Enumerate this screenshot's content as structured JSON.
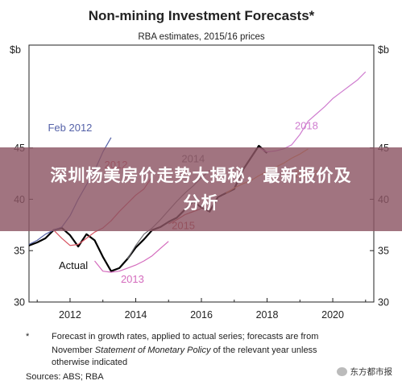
{
  "chart_data": {
    "type": "line",
    "title": "Non-mining Investment Forecasts*",
    "subtitle": "RBA estimates, 2015/16 prices",
    "y_unit_left": "$b",
    "y_unit_right": "$b",
    "xlim": [
      2010.75,
      2021.25
    ],
    "ylim": [
      30,
      55
    ],
    "x_ticks": [
      "2012",
      "2014",
      "2016",
      "2018",
      "2020"
    ],
    "y_ticks": [
      "30",
      "35",
      "40",
      "45"
    ],
    "grid": false,
    "series": [
      {
        "name": "Actual",
        "color": "#000000",
        "label_pos": [
          2012.1,
          33.2
        ],
        "points": [
          [
            2010.75,
            35.5
          ],
          [
            2011.0,
            35.8
          ],
          [
            2011.25,
            36.2
          ],
          [
            2011.5,
            37.0
          ],
          [
            2011.75,
            37.2
          ],
          [
            2012.0,
            36.5
          ],
          [
            2012.25,
            35.4
          ],
          [
            2012.5,
            36.6
          ],
          [
            2012.75,
            36.0
          ],
          [
            2013.0,
            34.4
          ],
          [
            2013.25,
            33.0
          ],
          [
            2013.5,
            33.3
          ],
          [
            2013.75,
            34.2
          ],
          [
            2014.0,
            35.3
          ],
          [
            2014.25,
            36.1
          ],
          [
            2014.5,
            37.0
          ],
          [
            2014.75,
            37.3
          ],
          [
            2015.0,
            37.8
          ],
          [
            2015.25,
            38.2
          ],
          [
            2015.5,
            39.0
          ],
          [
            2015.75,
            39.8
          ],
          [
            2016.0,
            39.2
          ],
          [
            2016.25,
            38.8
          ],
          [
            2016.5,
            40.2
          ],
          [
            2016.75,
            40.6
          ],
          [
            2017.0,
            41.0
          ],
          [
            2017.25,
            42.8
          ],
          [
            2017.5,
            44.0
          ],
          [
            2017.75,
            45.2
          ],
          [
            2018.0,
            44.5
          ]
        ]
      },
      {
        "name": "Feb 2012",
        "color": "#5562a8",
        "label_pos": [
          2012.0,
          46.6
        ],
        "points": [
          [
            2010.75,
            35.6
          ],
          [
            2011.0,
            36.0
          ],
          [
            2011.25,
            36.6
          ],
          [
            2011.5,
            37.0
          ],
          [
            2011.75,
            37.3
          ],
          [
            2012.0,
            38.4
          ],
          [
            2012.25,
            40.0
          ],
          [
            2012.5,
            41.4
          ],
          [
            2012.75,
            42.8
          ],
          [
            2013.0,
            44.6
          ],
          [
            2013.25,
            46.0
          ]
        ]
      },
      {
        "name": "2012",
        "color": "#d6505e",
        "label_pos": [
          2013.4,
          43.0
        ],
        "points": [
          [
            2011.5,
            37.0
          ],
          [
            2011.75,
            36.2
          ],
          [
            2012.0,
            35.5
          ],
          [
            2012.25,
            35.6
          ],
          [
            2012.5,
            36.2
          ],
          [
            2012.75,
            36.8
          ],
          [
            2013.0,
            37.2
          ],
          [
            2013.25,
            37.9
          ],
          [
            2013.5,
            38.8
          ],
          [
            2013.75,
            39.6
          ],
          [
            2014.0,
            40.4
          ],
          [
            2014.25,
            41.0
          ],
          [
            2014.5,
            42.2
          ]
        ]
      },
      {
        "name": "2013",
        "color": "#d46bbd",
        "label_pos": [
          2013.9,
          31.9
        ],
        "points": [
          [
            2012.75,
            34.0
          ],
          [
            2013.0,
            33.0
          ],
          [
            2013.25,
            32.9
          ],
          [
            2013.5,
            33.0
          ],
          [
            2013.75,
            33.3
          ],
          [
            2014.0,
            33.6
          ],
          [
            2014.25,
            34.0
          ],
          [
            2014.5,
            34.5
          ],
          [
            2014.75,
            35.2
          ],
          [
            2015.0,
            35.9
          ]
        ]
      },
      {
        "name": "2014",
        "color": "#6a6a70",
        "label_pos": [
          2015.75,
          43.6
        ],
        "points": [
          [
            2013.75,
            34.2
          ],
          [
            2014.0,
            35.5
          ],
          [
            2014.25,
            36.6
          ],
          [
            2014.5,
            37.2
          ],
          [
            2014.75,
            38.0
          ],
          [
            2015.0,
            38.9
          ],
          [
            2015.25,
            39.8
          ],
          [
            2015.5,
            40.6
          ],
          [
            2015.75,
            41.3
          ],
          [
            2016.0,
            42.1
          ],
          [
            2016.25,
            42.8
          ]
        ]
      },
      {
        "name": "2015",
        "color": "#b53c3c",
        "label_pos": [
          2015.45,
          37.1
        ],
        "points": [
          [
            2015.0,
            37.6
          ],
          [
            2015.25,
            38.0
          ],
          [
            2015.5,
            38.5
          ],
          [
            2015.75,
            38.8
          ],
          [
            2016.0,
            39.1
          ]
        ]
      },
      {
        "name": "2017",
        "color": "#f19a48",
        "label_pos": [
          2019.2,
          42.1
        ],
        "points": [
          [
            2016.75,
            40.6
          ],
          [
            2017.0,
            41.1
          ],
          [
            2017.25,
            41.5
          ],
          [
            2017.5,
            41.8
          ],
          [
            2017.75,
            42.3
          ],
          [
            2018.0,
            42.7
          ],
          [
            2018.25,
            43.1
          ],
          [
            2018.5,
            43.5
          ],
          [
            2018.75,
            44.0
          ],
          [
            2019.0,
            44.4
          ],
          [
            2019.25,
            44.9
          ]
        ]
      },
      {
        "name": "2018",
        "color": "#cf7dcf",
        "label_pos": [
          2019.2,
          46.8
        ],
        "points": [
          [
            2017.75,
            45.0
          ],
          [
            2018.0,
            44.6
          ],
          [
            2018.25,
            44.7
          ],
          [
            2018.5,
            44.9
          ],
          [
            2018.75,
            45.3
          ],
          [
            2019.0,
            46.3
          ],
          [
            2019.25,
            47.6
          ],
          [
            2019.5,
            48.3
          ],
          [
            2019.75,
            49.0
          ],
          [
            2020.0,
            49.8
          ],
          [
            2020.25,
            50.4
          ],
          [
            2020.5,
            51.0
          ],
          [
            2020.75,
            51.6
          ],
          [
            2021.0,
            52.4
          ]
        ]
      }
    ]
  },
  "footnote": {
    "marker": "*",
    "line1": "Forecast in growth rates, applied to actual series; forecasts are from",
    "line2_pre": "November ",
    "line2_italic": "Statement of Monetary Policy",
    "line2_post": " of the relevant year unless",
    "line3": "otherwise indicated",
    "sources": "Sources:   ABS; RBA"
  },
  "overlay": {
    "text": "深圳杨美房价走势大揭秘，最新报价及分析"
  },
  "watermark": {
    "text": "东方都市报",
    "icon": "wechat-icon"
  }
}
